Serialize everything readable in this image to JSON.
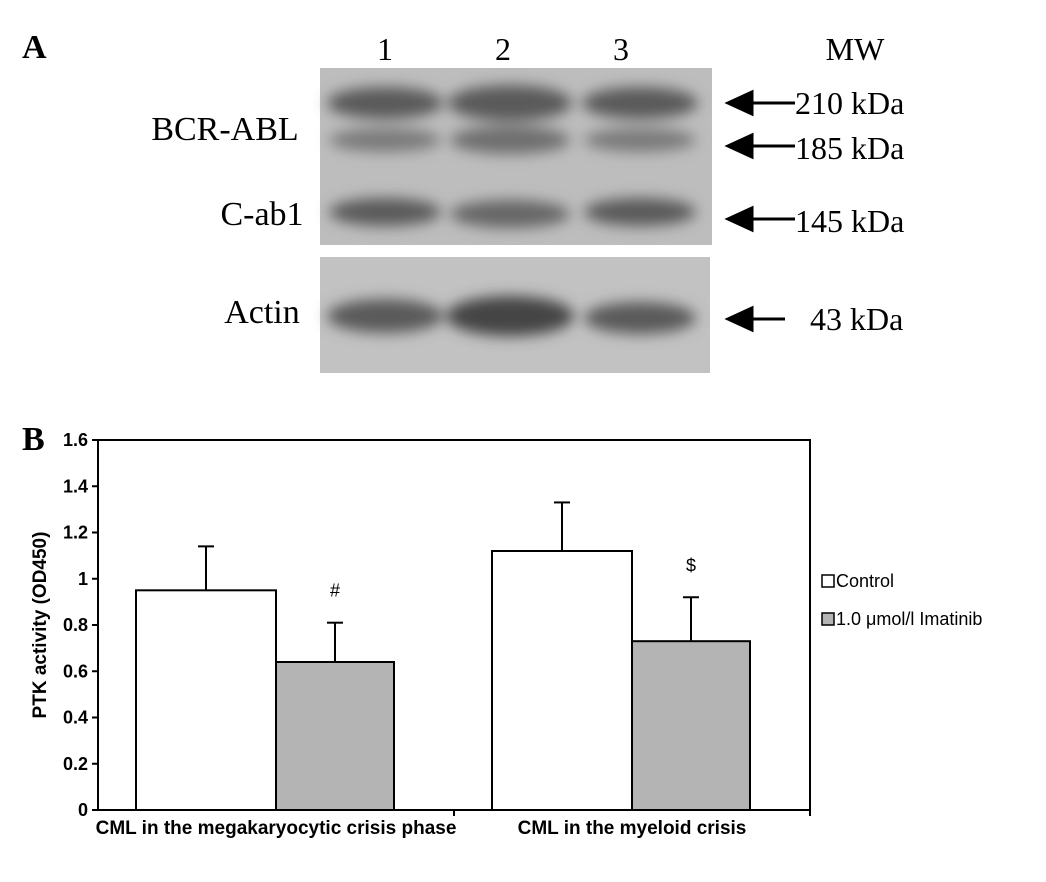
{
  "panel_a": {
    "label": "A",
    "lanes": [
      "1",
      "2",
      "3"
    ],
    "mw_header": "MW",
    "proteins": [
      "BCR-ABL",
      "C-ab1",
      "Actin"
    ],
    "markers": [
      "210 kDa",
      "185 kDa",
      "145 kDa",
      "43 kDa"
    ]
  },
  "chart_data": {
    "type": "bar",
    "label": "B",
    "y_label": "PTK activity (OD450)",
    "categories": [
      "CML in the megakaryocytic crisis phase",
      "CML in the myeloid crisis"
    ],
    "series": [
      {
        "name": "Control",
        "color": "#ffffff",
        "values": [
          0.95,
          1.12
        ],
        "errors": [
          0.19,
          0.21
        ]
      },
      {
        "name": "1.0 μmol/l Imatinib",
        "color": "#b4b4b4",
        "values": [
          0.64,
          0.73
        ],
        "errors": [
          0.17,
          0.19
        ]
      }
    ],
    "annotations": [
      "#",
      "$"
    ],
    "ylim": [
      0,
      1.6
    ],
    "yticks": [
      0,
      0.2,
      0.4,
      0.6,
      0.8,
      1,
      1.2,
      1.4,
      1.6
    ],
    "legend": "right"
  }
}
